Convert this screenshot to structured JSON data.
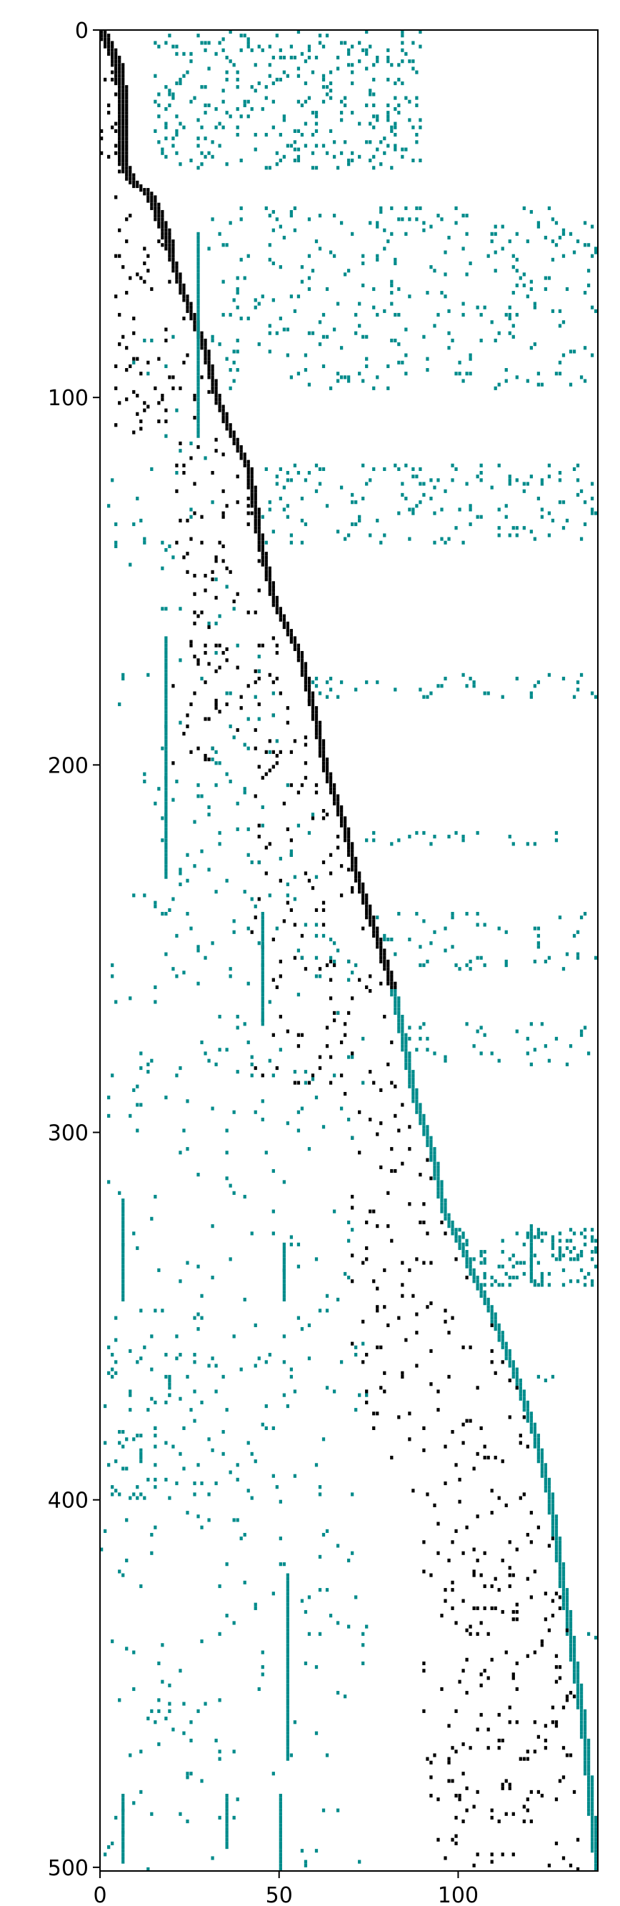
{
  "chart_data": {
    "type": "heatmap",
    "title": "",
    "xlabel": "",
    "ylabel": "",
    "xlim": [
      0,
      139
    ],
    "ylim": [
      501,
      0
    ],
    "grid": false,
    "legend": "none",
    "x_ticks": [
      0,
      50,
      100
    ],
    "y_ticks": [
      0,
      100,
      200,
      300,
      400,
      500
    ],
    "x_tick_labels": [
      "0",
      "50",
      "100"
    ],
    "y_tick_labels": [
      "0",
      "100",
      "200",
      "300",
      "400",
      "500"
    ],
    "colors": {
      "black": "#000000",
      "teal": "#008b8b"
    },
    "diagonal_band": [
      [
        0,
        0,
        "black"
      ],
      [
        10,
        5,
        "black"
      ],
      [
        20,
        6,
        "black"
      ],
      [
        35,
        6,
        "black"
      ],
      [
        40,
        8,
        "black"
      ],
      [
        45,
        14,
        "black"
      ],
      [
        55,
        18,
        "black"
      ],
      [
        70,
        23,
        "black"
      ],
      [
        85,
        29,
        "black"
      ],
      [
        100,
        33,
        "black"
      ],
      [
        110,
        37,
        "black"
      ],
      [
        120,
        42,
        "black"
      ],
      [
        140,
        45,
        "black"
      ],
      [
        155,
        49,
        "black"
      ],
      [
        170,
        56,
        "black"
      ],
      [
        185,
        60,
        "black"
      ],
      [
        200,
        63,
        "black"
      ],
      [
        215,
        68,
        "black"
      ],
      [
        230,
        72,
        "black"
      ],
      [
        245,
        77,
        "black"
      ],
      [
        260,
        82,
        "teal"
      ],
      [
        275,
        85,
        "teal"
      ],
      [
        290,
        88,
        "teal"
      ],
      [
        305,
        93,
        "teal"
      ],
      [
        320,
        96,
        "teal"
      ],
      [
        335,
        103,
        "teal"
      ],
      [
        350,
        110,
        "teal"
      ],
      [
        365,
        116,
        "teal"
      ],
      [
        380,
        121,
        "teal"
      ],
      [
        400,
        126,
        "teal"
      ],
      [
        420,
        129,
        "teal"
      ],
      [
        440,
        132,
        "teal"
      ],
      [
        460,
        135,
        "teal"
      ],
      [
        480,
        137,
        "teal"
      ],
      [
        501,
        139,
        "teal"
      ]
    ],
    "upper_clusters": [
      [
        0,
        38,
        15,
        90,
        0.12
      ],
      [
        48,
        98,
        30,
        139,
        0.06
      ],
      [
        118,
        140,
        45,
        139,
        0.07
      ],
      [
        175,
        182,
        57,
        139,
        0.09
      ],
      [
        218,
        222,
        68,
        139,
        0.08
      ],
      [
        240,
        256,
        74,
        139,
        0.06
      ],
      [
        270,
        282,
        80,
        139,
        0.05
      ],
      [
        326,
        342,
        96,
        139,
        0.18
      ],
      [
        365,
        368,
        115,
        139,
        0.04
      ],
      [
        430,
        440,
        130,
        139,
        0.05
      ]
    ],
    "black_scatter_regions": [
      [
        0,
        40,
        0,
        25,
        0.1
      ],
      [
        40,
        110,
        4,
        45,
        0.05
      ],
      [
        110,
        200,
        20,
        62,
        0.045
      ],
      [
        200,
        290,
        42,
        90,
        0.04
      ],
      [
        290,
        400,
        70,
        120,
        0.035
      ],
      [
        400,
        501,
        90,
        139,
        0.045
      ]
    ],
    "teal_scatter_regions": [
      [
        80,
        501,
        2,
        75,
        0.012
      ],
      [
        320,
        501,
        0,
        30,
        0.01
      ],
      [
        380,
        400,
        2,
        50,
        0.05
      ],
      [
        360,
        372,
        2,
        75,
        0.03
      ],
      [
        280,
        300,
        2,
        60,
        0.03
      ],
      [
        180,
        260,
        15,
        75,
        0.015
      ]
    ],
    "teal_vertical_streaks": [
      [
        6,
        318,
        345
      ],
      [
        6,
        480,
        498
      ],
      [
        18,
        165,
        230
      ],
      [
        27,
        55,
        110
      ],
      [
        45,
        240,
        270
      ],
      [
        51,
        330,
        345
      ],
      [
        52,
        420,
        470
      ],
      [
        35,
        480,
        494
      ],
      [
        50,
        480,
        501
      ],
      [
        120,
        325,
        340
      ]
    ]
  }
}
